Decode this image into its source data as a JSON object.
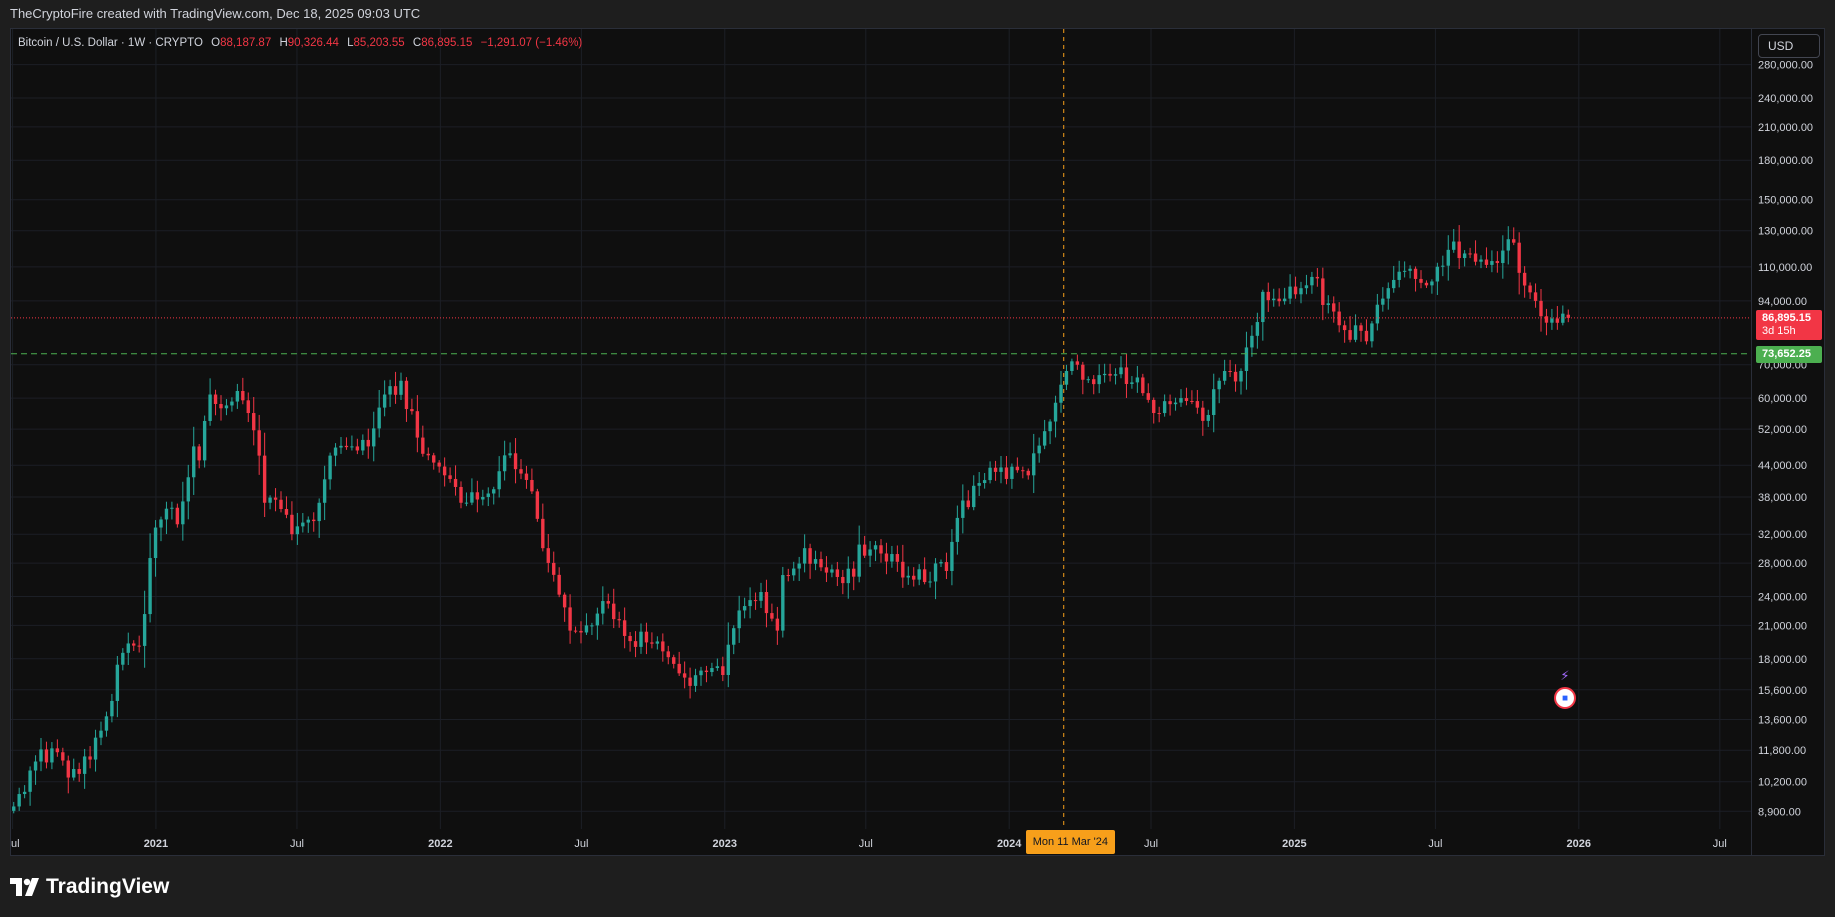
{
  "header": {
    "attribution": "TheCryptoFire created with TradingView.com, Dec 18, 2025 09:03 UTC"
  },
  "legend": {
    "symbol": "Bitcoin / U.S. Dollar · 1W · CRYPTO",
    "o_label": "O",
    "o_value": "88,187.87",
    "h_label": "H",
    "h_value": "90,326.44",
    "l_label": "L",
    "l_value": "85,203.55",
    "c_label": "C",
    "c_value": "86,895.15",
    "change": "−1,291.07 (−1.46%)"
  },
  "currency_button": "USD",
  "current_price": {
    "value": "86,895.15",
    "countdown": "3d 15h",
    "color": "#f23645"
  },
  "level_line": {
    "value": "73,652.25",
    "color": "#4caf50"
  },
  "crosshair": {
    "label": "Mon 11 Mar '24"
  },
  "brand": {
    "name": "TradingView"
  },
  "colors": {
    "up": "#26a69a",
    "down": "#f23645",
    "crosshair": "#f79f1a"
  },
  "chart_data": {
    "type": "candlestick",
    "symbol": "BTCUSD",
    "interval": "1W",
    "scale": "log",
    "grid": true,
    "ylim": [
      8200,
      330000
    ],
    "xlim": [
      "2020-06-29",
      "2026-08-10"
    ],
    "y_ticks": [
      8900,
      10200,
      11800,
      13600,
      15600,
      18000,
      21000,
      24000,
      28000,
      32000,
      38000,
      44000,
      52000,
      60000,
      70000,
      94000,
      110000,
      130000,
      150000,
      180000,
      210000,
      240000,
      280000
    ],
    "y_tick_labels": [
      "8,900.00",
      "10,200.00",
      "11,800.00",
      "13,600.00",
      "15,600.00",
      "18,000.00",
      "21,000.00",
      "24,000.00",
      "28,000.00",
      "32,000.00",
      "38,000.00",
      "44,000.00",
      "52,000.00",
      "60,000.00",
      "70,000.00",
      "94,000.00",
      "110,000.00",
      "130,000.00",
      "150,000.00",
      "180,000.00",
      "210,000.00",
      "240,000.00",
      "280,000.00"
    ],
    "x_ticks": [
      {
        "label": "Jul",
        "date": "2020-07-01"
      },
      {
        "label": "2021",
        "date": "2021-01-01"
      },
      {
        "label": "Jul",
        "date": "2021-07-01"
      },
      {
        "label": "2022",
        "date": "2022-01-01"
      },
      {
        "label": "Jul",
        "date": "2022-07-01"
      },
      {
        "label": "2023",
        "date": "2023-01-01"
      },
      {
        "label": "Jul",
        "date": "2023-07-01"
      },
      {
        "label": "2024",
        "date": "2024-01-01"
      },
      {
        "label": "Jul",
        "date": "2024-07-01"
      },
      {
        "label": "2025",
        "date": "2025-01-01"
      },
      {
        "label": "Jul",
        "date": "2025-07-01"
      },
      {
        "label": "2026",
        "date": "2026-01-01"
      },
      {
        "label": "Jul",
        "date": "2026-07-01"
      }
    ],
    "weekly_close_anchors": [
      [
        "2020-06-29",
        9100
      ],
      [
        "2020-07-27",
        11200
      ],
      [
        "2020-08-17",
        11900
      ],
      [
        "2020-09-07",
        10400
      ],
      [
        "2020-10-05",
        11300
      ],
      [
        "2020-10-26",
        13800
      ],
      [
        "2020-11-16",
        18500
      ],
      [
        "2020-12-07",
        19100
      ],
      [
        "2020-12-28",
        33000
      ],
      [
        "2021-01-11",
        36000
      ],
      [
        "2021-01-25",
        33500
      ],
      [
        "2021-02-15",
        48000
      ],
      [
        "2021-02-22",
        45000
      ],
      [
        "2021-03-08",
        61000
      ],
      [
        "2021-03-29",
        58000
      ],
      [
        "2021-04-12",
        62000
      ],
      [
        "2021-04-26",
        56000
      ],
      [
        "2021-05-10",
        46000
      ],
      [
        "2021-05-17",
        37000
      ],
      [
        "2021-06-14",
        35000
      ],
      [
        "2021-06-21",
        32000
      ],
      [
        "2021-07-19",
        34000
      ],
      [
        "2021-08-09",
        46000
      ],
      [
        "2021-09-06",
        48000
      ],
      [
        "2021-09-27",
        48000
      ],
      [
        "2021-10-18",
        61000
      ],
      [
        "2021-11-08",
        65000
      ],
      [
        "2021-11-29",
        50000
      ],
      [
        "2022-01-03",
        42000
      ],
      [
        "2022-01-24",
        37000
      ],
      [
        "2022-02-21",
        38000
      ],
      [
        "2022-03-28",
        46500
      ],
      [
        "2022-04-25",
        39000
      ],
      [
        "2022-05-09",
        30000
      ],
      [
        "2022-06-13",
        20500
      ],
      [
        "2022-07-11",
        21000
      ],
      [
        "2022-07-25",
        23500
      ],
      [
        "2022-08-22",
        20000
      ],
      [
        "2022-10-03",
        19500
      ],
      [
        "2022-11-07",
        16500
      ],
      [
        "2022-12-26",
        16700
      ],
      [
        "2023-01-16",
        22500
      ],
      [
        "2023-02-13",
        24500
      ],
      [
        "2023-03-06",
        20500
      ],
      [
        "2023-03-13",
        26500
      ],
      [
        "2023-04-10",
        30000
      ],
      [
        "2023-05-08",
        26800
      ],
      [
        "2023-06-12",
        26300
      ],
      [
        "2023-06-19",
        30500
      ],
      [
        "2023-07-31",
        29200
      ],
      [
        "2023-08-14",
        26200
      ],
      [
        "2023-10-09",
        27000
      ],
      [
        "2023-10-23",
        34500
      ],
      [
        "2023-12-04",
        43500
      ],
      [
        "2024-01-08",
        43000
      ],
      [
        "2024-01-22",
        42000
      ],
      [
        "2024-02-12",
        51500
      ],
      [
        "2024-03-11",
        68000
      ],
      [
        "2024-03-25",
        70000
      ],
      [
        "2024-04-15",
        64000
      ],
      [
        "2024-05-13",
        67000
      ],
      [
        "2024-06-10",
        66000
      ],
      [
        "2024-07-01",
        56000
      ],
      [
        "2024-08-05",
        60000
      ],
      [
        "2024-09-02",
        54000
      ],
      [
        "2024-09-23",
        65000
      ],
      [
        "2024-10-21",
        68000
      ],
      [
        "2024-11-04",
        80000
      ],
      [
        "2024-11-18",
        98000
      ],
      [
        "2024-12-16",
        95000
      ],
      [
        "2025-01-20",
        105000
      ],
      [
        "2025-02-24",
        84000
      ],
      [
        "2025-03-31",
        78000
      ],
      [
        "2025-04-21",
        95000
      ],
      [
        "2025-05-19",
        108000
      ],
      [
        "2025-06-16",
        101000
      ],
      [
        "2025-07-14",
        119000
      ],
      [
        "2025-08-11",
        117000
      ],
      [
        "2025-09-01",
        111000
      ],
      [
        "2025-10-06",
        123000
      ],
      [
        "2025-10-13",
        107000
      ],
      [
        "2025-11-03",
        94000
      ],
      [
        "2025-11-17",
        85000
      ],
      [
        "2025-12-15",
        86895.15
      ]
    ],
    "last_candle": {
      "open": 88187.87,
      "high": 90326.44,
      "low": 85203.55,
      "close": 86895.15
    },
    "horizontal_levels": [
      {
        "price": 86895.15,
        "style": "dotted",
        "color": "#f23645"
      },
      {
        "price": 73652.25,
        "style": "dashed",
        "color": "#4caf50"
      }
    ],
    "crosshair_date": "2024-03-11"
  }
}
